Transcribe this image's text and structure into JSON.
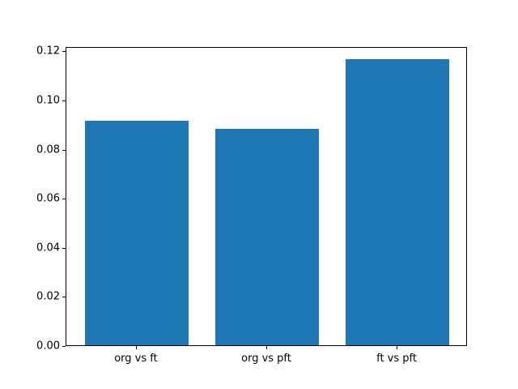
{
  "figure": {
    "background": "#ffffff",
    "title": ""
  },
  "chart_data": {
    "type": "bar",
    "categories": [
      "org vs ft",
      "org vs pft",
      "ft vs pft"
    ],
    "values": [
      0.0916,
      0.088,
      0.1164
    ],
    "title": "",
    "xlabel": "",
    "ylabel": "",
    "xlim": [
      -0.54,
      2.54
    ],
    "ylim": [
      0,
      0.1218
    ],
    "yticks": [
      0,
      0.02,
      0.04,
      0.06,
      0.08,
      0.1,
      0.12
    ],
    "ytick_labels": [
      "0.00",
      "0.02",
      "0.04",
      "0.06",
      "0.08",
      "0.10",
      "0.12"
    ],
    "bar_width": 0.8,
    "bar_color": "#1f77b4",
    "axis_color": "#000000",
    "text_color": "#000000",
    "grid": false,
    "legend": null
  }
}
